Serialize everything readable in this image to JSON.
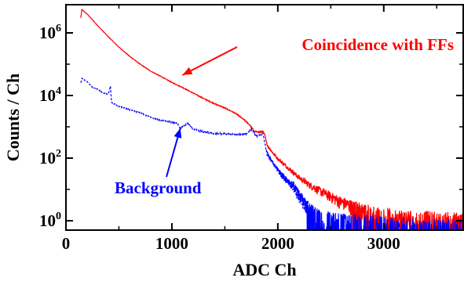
{
  "chart_data": {
    "type": "line",
    "title": "",
    "xlabel": "ADC Ch",
    "ylabel": "Counts / Ch",
    "xlim": [
      0,
      3750
    ],
    "ylim_log10": [
      -0.3,
      6.9
    ],
    "y_scale": "log",
    "grid": false,
    "x_ticks": [
      {
        "value": 0,
        "label": "0"
      },
      {
        "value": 1000,
        "label": "1000"
      },
      {
        "value": 2000,
        "label": "2000"
      },
      {
        "value": 3000,
        "label": "3000"
      }
    ],
    "y_ticks": [
      {
        "exp": 0,
        "base": "10",
        "sup": "0"
      },
      {
        "exp": 2,
        "base": "10",
        "sup": "2"
      },
      {
        "exp": 4,
        "base": "10",
        "sup": "4"
      },
      {
        "exp": 6,
        "base": "10",
        "sup": "6"
      }
    ],
    "series": [
      {
        "color": "#ff0000",
        "dash": "solid",
        "points": [
          [
            140,
            3000000.0
          ],
          [
            150,
            5500000.0
          ],
          [
            200,
            4000000.0
          ],
          [
            300,
            1700000.0
          ],
          [
            400,
            750000.0
          ],
          [
            500,
            350000.0
          ],
          [
            600,
            180000.0
          ],
          [
            700,
            100000.0
          ],
          [
            800,
            60000.0
          ],
          [
            900,
            40000.0
          ],
          [
            1000,
            26000.0
          ],
          [
            1100,
            18000.0
          ],
          [
            1200,
            12000.0
          ],
          [
            1300,
            8000.0
          ],
          [
            1400,
            5500.0
          ],
          [
            1500,
            4000.0
          ],
          [
            1600,
            2700.0
          ],
          [
            1700,
            1500.0
          ],
          [
            1740,
            1100.0
          ],
          [
            1780,
            700
          ],
          [
            1820,
            680
          ],
          [
            1860,
            700
          ],
          [
            1880,
            520
          ],
          [
            1900,
            260
          ],
          [
            1950,
            150
          ],
          [
            2000,
            95
          ],
          [
            2100,
            48
          ],
          [
            2200,
            24
          ],
          [
            2300,
            14
          ],
          [
            2400,
            9
          ],
          [
            2500,
            6
          ],
          [
            2600,
            4
          ],
          [
            2700,
            3
          ],
          [
            2800,
            2.3
          ],
          [
            2900,
            1.8
          ],
          [
            3000,
            1.5
          ],
          [
            3200,
            1.2
          ],
          [
            3400,
            1.1
          ],
          [
            3600,
            1.0
          ],
          [
            3750,
            1.0
          ]
        ]
      },
      {
        "color": "#0000ff",
        "dash": "dashed",
        "points": [
          [
            140,
            25000.0
          ],
          [
            150,
            35000.0
          ],
          [
            200,
            28000.0
          ],
          [
            250,
            18000.0
          ],
          [
            300,
            16000.0
          ],
          [
            350,
            12000.0
          ],
          [
            400,
            11000.0
          ],
          [
            420,
            20000.0
          ],
          [
            430,
            6000.0
          ],
          [
            500,
            4500.0
          ],
          [
            600,
            3500.0
          ],
          [
            700,
            2800.0
          ],
          [
            800,
            2000.0
          ],
          [
            900,
            1600.0
          ],
          [
            1000,
            1400.0
          ],
          [
            1050,
            1300.0
          ],
          [
            1080,
            900
          ],
          [
            1150,
            1300.0
          ],
          [
            1200,
            850
          ],
          [
            1300,
            700
          ],
          [
            1400,
            600
          ],
          [
            1500,
            600
          ],
          [
            1600,
            550
          ],
          [
            1700,
            600
          ],
          [
            1750,
            850
          ],
          [
            1800,
            500
          ],
          [
            1860,
            600
          ],
          [
            1900,
            120
          ],
          [
            2000,
            45
          ],
          [
            2100,
            18
          ],
          [
            2200,
            6
          ],
          [
            2300,
            2.5
          ],
          [
            2350,
            1.2
          ]
        ]
      },
      {
        "color": "#0000ff",
        "dash": "solid",
        "points": [
          [
            1900,
            150
          ],
          [
            1950,
            70
          ],
          [
            2000,
            42
          ],
          [
            2050,
            25
          ],
          [
            2100,
            18
          ],
          [
            2150,
            14
          ],
          [
            2200,
            7
          ],
          [
            2250,
            4
          ],
          [
            2300,
            2.2
          ],
          [
            2400,
            1.3
          ],
          [
            2500,
            1.0
          ],
          [
            2700,
            0.8
          ],
          [
            2900,
            0.7
          ],
          [
            3000,
            0.6
          ],
          [
            3200,
            0.55
          ],
          [
            3500,
            0.5
          ],
          [
            3750,
            0.5
          ]
        ]
      }
    ],
    "annotations": [
      {
        "text": "Coincidence with FFs",
        "color": "#ff0000",
        "points_to": [
          1100,
          45000.0
        ]
      },
      {
        "text": "Background",
        "color": "#0000ff",
        "points_to": [
          1080,
          900
        ]
      }
    ]
  }
}
